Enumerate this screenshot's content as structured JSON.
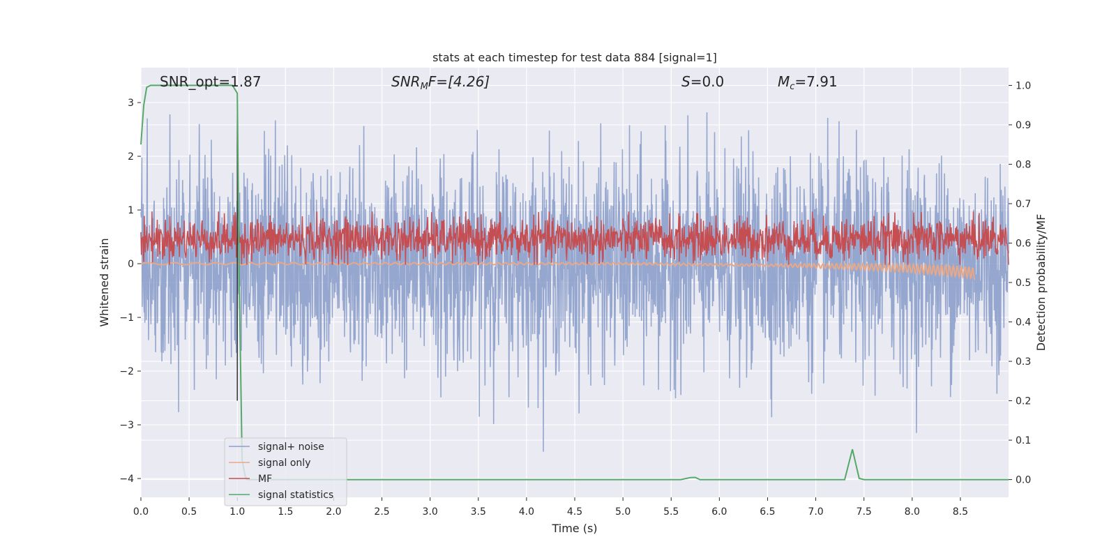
{
  "chart_data": {
    "type": "line",
    "title": "stats at each timestep for test data 884 [signal=1]",
    "xlabel": "Time (s)",
    "ylabel": "Whitened strain",
    "y2label": "Detection probability/MF",
    "xlim": [
      0,
      9.0
    ],
    "ylim": [
      -4.35,
      3.65
    ],
    "y2lim": [
      -0.045,
      1.045
    ],
    "x_ticks": [
      "0.0",
      "0.5",
      "1.0",
      "1.5",
      "2.0",
      "2.5",
      "3.0",
      "3.5",
      "4.0",
      "4.5",
      "5.0",
      "5.5",
      "6.0",
      "6.5",
      "7.0",
      "7.5",
      "8.0",
      "8.5"
    ],
    "y_ticks": [
      "3",
      "2",
      "1",
      "0",
      "−1",
      "−2",
      "−3",
      "−4"
    ],
    "y2_ticks": [
      "1.0",
      "0.9",
      "0.8",
      "0.7",
      "0.6",
      "0.5",
      "0.4",
      "0.3",
      "0.2",
      "0.1",
      "0.0"
    ],
    "grid": true,
    "legend_position": "lower left",
    "annotations": {
      "snr_opt": "SNR_opt=1.87",
      "snr_mf_prefix": "SNR",
      "snr_mf_sub": "M",
      "snr_mf_suffix": "F=[4.26]",
      "s_name": "S",
      "s_value": "=0.0",
      "mc_name": "M",
      "mc_sub": "c",
      "mc_value": "=7.91"
    },
    "marker_line_x": 1.0,
    "series": [
      {
        "name": "signal+ noise",
        "color": "#8da0cb",
        "axis": "left",
        "description_values": {
          "x_range": [
            0,
            9.0
          ],
          "typical_range": [
            -1.5,
            1.5
          ],
          "max": 3.1,
          "min": -3.5
        }
      },
      {
        "name": "signal only",
        "color": "#e8a888",
        "axis": "left",
        "x": [
          0,
          1,
          2,
          3,
          4,
          5,
          6,
          7,
          7.5,
          8,
          8.3,
          8.6,
          8.65
        ],
        "y": [
          0.0,
          0.0,
          0.0,
          0.0,
          0.0,
          0.0,
          -0.02,
          -0.04,
          -0.06,
          -0.09,
          -0.12,
          -0.16,
          -0.2
        ]
      },
      {
        "name": "MF",
        "color": "#c44e52",
        "axis": "right",
        "typical_range": [
          0.56,
          0.66
        ],
        "max": 0.68,
        "min": 0.545
      },
      {
        "name": "signal statistics",
        "color": "#55a868",
        "axis": "right",
        "x": [
          0,
          0.03,
          0.06,
          0.1,
          0.2,
          0.4,
          0.6,
          0.8,
          0.95,
          1.0,
          1.02,
          1.05,
          1.08,
          1.1,
          2.0,
          3.0,
          4.0,
          5.0,
          5.6,
          5.7,
          5.75,
          5.8,
          5.9,
          6.5,
          7.0,
          7.3,
          7.38,
          7.45,
          7.5,
          8.0,
          8.5,
          9.0
        ],
        "y": [
          0.85,
          0.95,
          0.995,
          1.0,
          1.0,
          1.0,
          1.0,
          1.0,
          1.0,
          0.98,
          0.5,
          0.05,
          0.01,
          0.0,
          0.0,
          0.0,
          0.0,
          0.0,
          0.0,
          0.005,
          0.0055,
          0.0,
          0.0,
          0.0,
          0.0,
          0.0,
          0.077,
          0.003,
          0.0,
          0.0,
          0.0,
          0.0
        ]
      }
    ]
  }
}
